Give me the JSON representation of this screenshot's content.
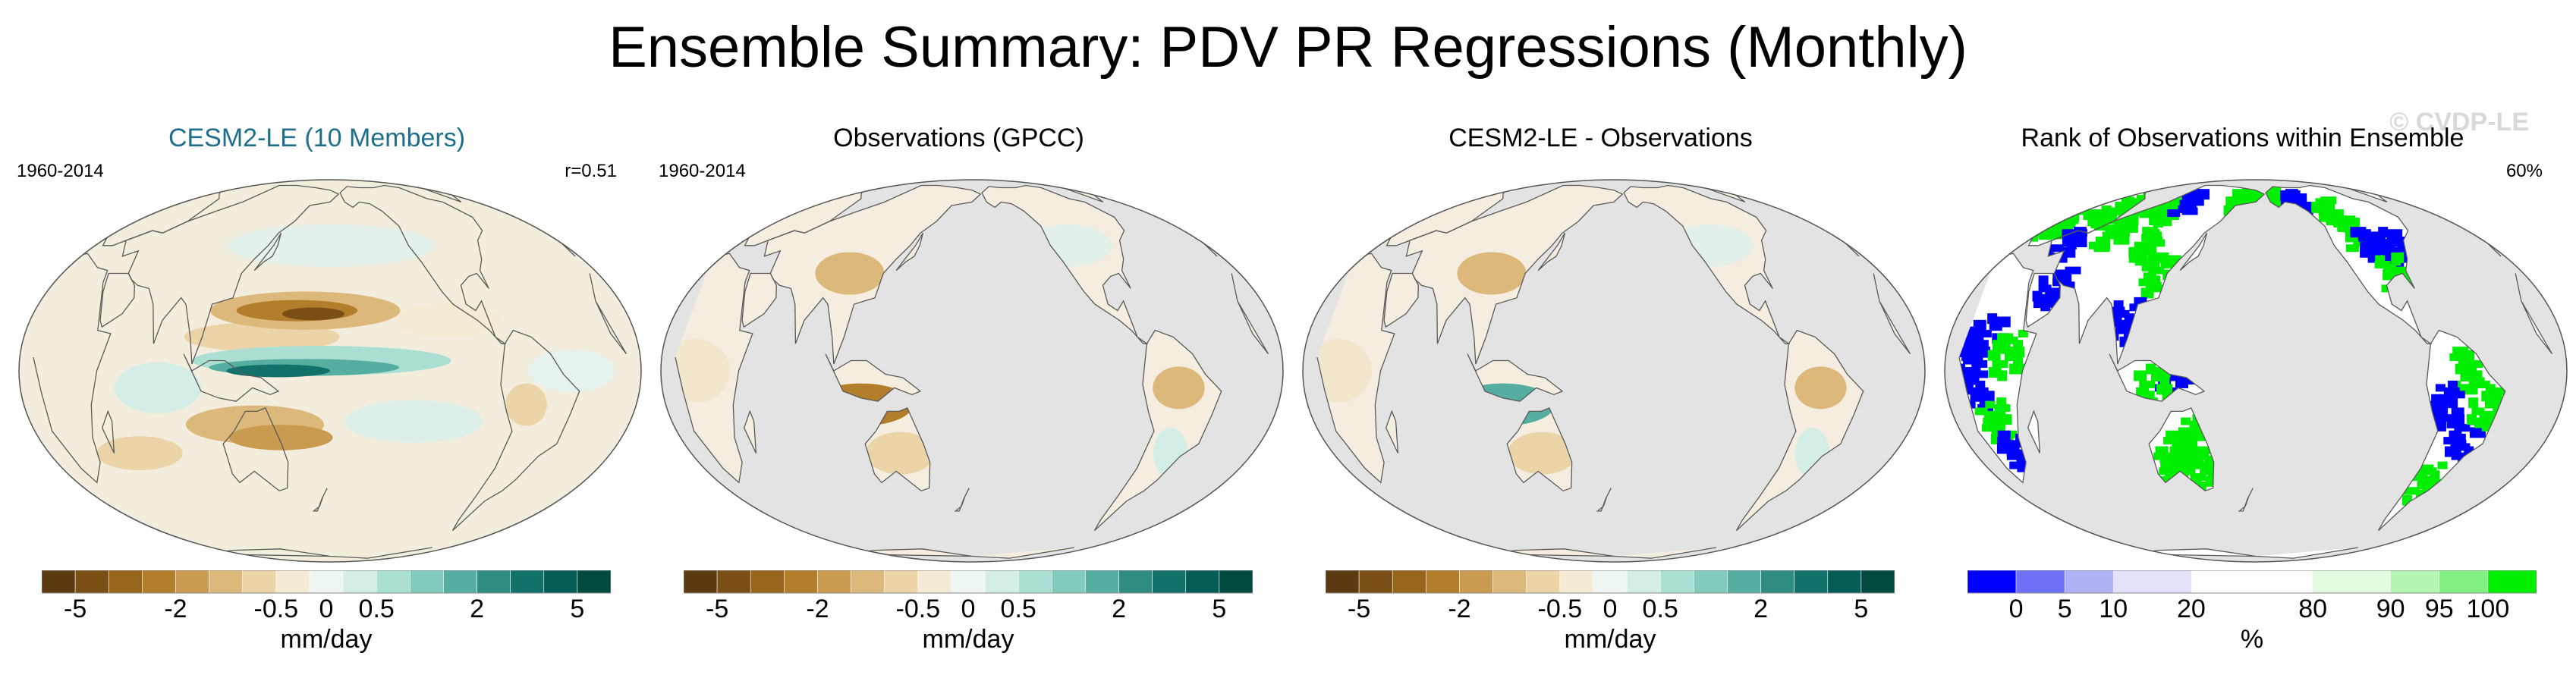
{
  "figure": {
    "title": "Ensemble Summary: PDV PR Regressions (Monthly)",
    "watermark": "© CVDP-LE"
  },
  "chart_data": [
    {
      "type": "heatmap",
      "title": "CESM2-LE (10 Members)",
      "title_color": "#1f6f8b",
      "period": "1960-2014",
      "stat": "r=0.51",
      "projection": "global map, Pacific-centered",
      "colorbar_ticks": [
        "-5",
        "-2",
        "-0.5",
        "0",
        "0.5",
        "2",
        "5"
      ],
      "units": "mm/day",
      "colors": [
        "#5b3a12",
        "#7a4f15",
        "#98651c",
        "#b37e2c",
        "#c99b50",
        "#dcb97b",
        "#ebd5a8",
        "#f5ebd4",
        "#eef6f2",
        "#d4ede6",
        "#acdfd4",
        "#83cbbd",
        "#55ae9f",
        "#2e8d80",
        "#12716a",
        "#065c56",
        "#004a40"
      ]
    },
    {
      "type": "heatmap",
      "title": "Observations (GPCC)",
      "title_color": "#000000",
      "period": "1960-2014",
      "stat": "",
      "projection": "global map, land only (ocean masked gray)",
      "colorbar_ticks": [
        "-5",
        "-2",
        "-0.5",
        "0",
        "0.5",
        "2",
        "5"
      ],
      "units": "mm/day"
    },
    {
      "type": "heatmap",
      "title": "CESM2-LE - Observations",
      "title_color": "#000000",
      "period": "",
      "stat": "",
      "projection": "global map, land only (ocean masked gray)",
      "colorbar_ticks": [
        "-5",
        "-2",
        "-0.5",
        "0",
        "0.5",
        "2",
        "5"
      ],
      "units": "mm/day"
    },
    {
      "type": "heatmap",
      "title": "Rank of Observations within Ensemble",
      "title_color": "#000000",
      "period": "",
      "stat": "60%",
      "projection": "global map, land only (ocean masked gray)",
      "colorbar_ticks": [
        "0",
        "5",
        "10",
        "20",
        "80",
        "90",
        "95",
        "100"
      ],
      "units": "%",
      "colors": [
        "#0000ff",
        "#6f6ff5",
        "#b1b1f5",
        "#e2e2fb",
        "#ffffff",
        "#e3fbe3",
        "#b4f5b4",
        "#83f083",
        "#00ee00"
      ]
    }
  ]
}
